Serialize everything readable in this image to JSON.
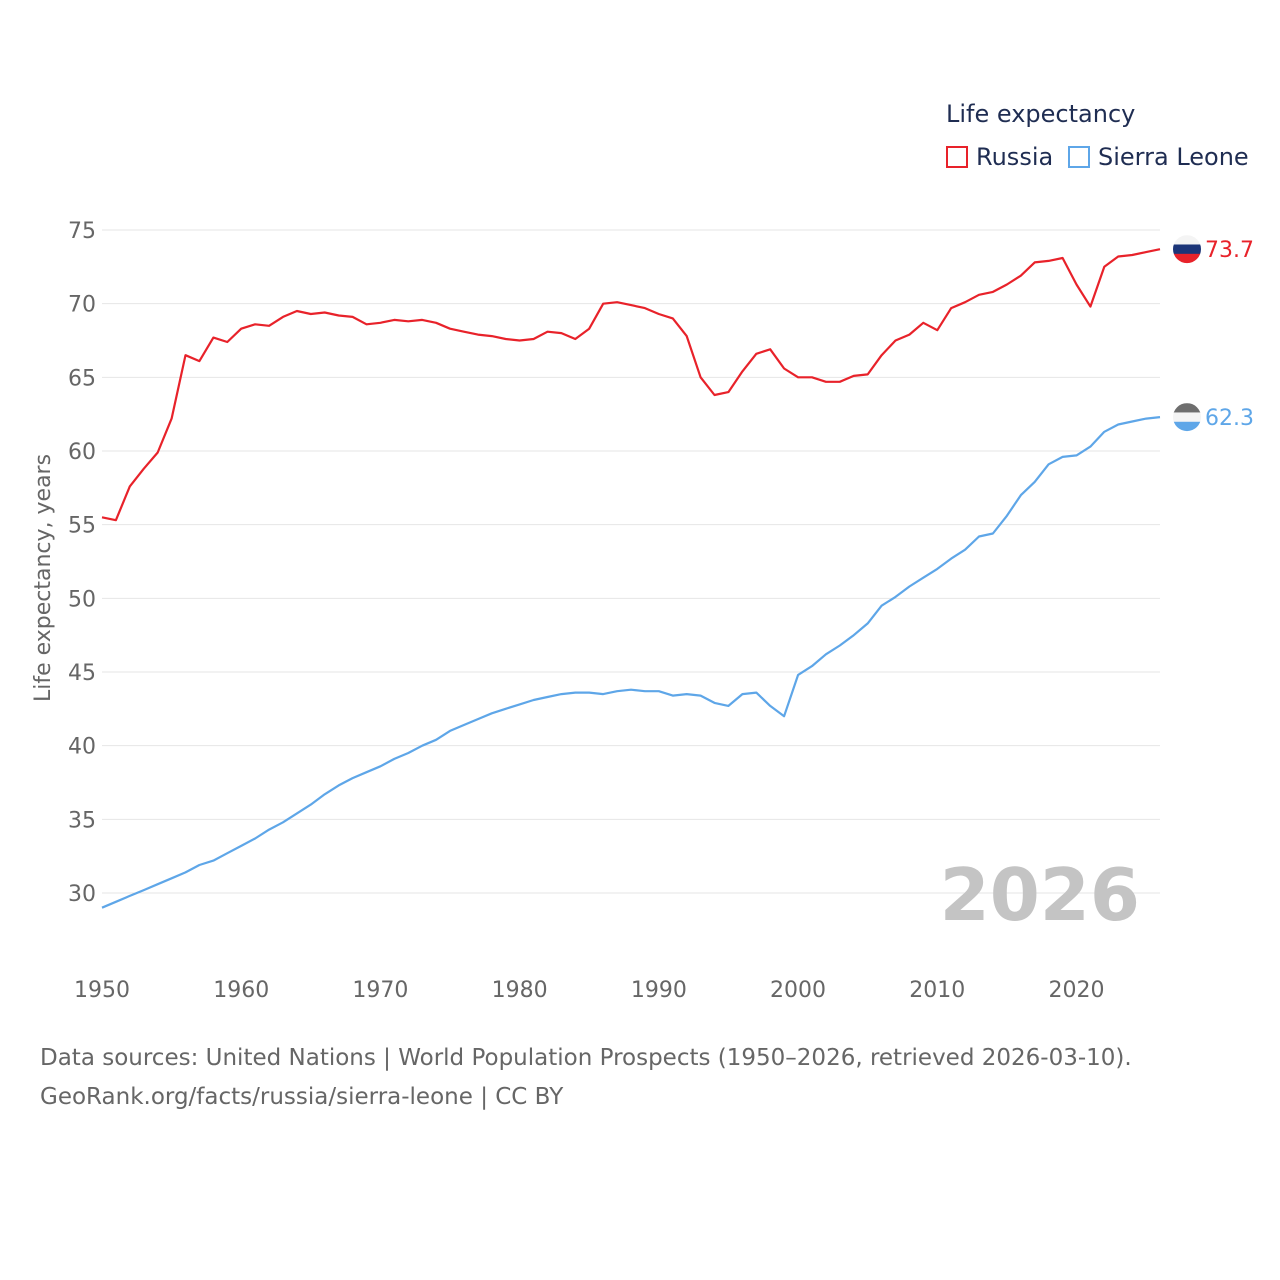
{
  "legend": {
    "title": "Life expectancy",
    "items": [
      {
        "label": "Russia",
        "color": "#e8222a"
      },
      {
        "label": "Sierra Leone",
        "color": "#5ea6e8"
      }
    ]
  },
  "footer": {
    "line1": "Data sources: United Nations | World Population Prospects (1950–2026, retrieved 2026-03-10).",
    "line2": "GeoRank.org/facts/russia/sierra-leone | CC BY"
  },
  "chart_data": {
    "type": "line",
    "title": "Life expectancy",
    "xlabel": "",
    "ylabel": "Life expectancy, years",
    "xlim": [
      1950,
      2026
    ],
    "ylim": [
      28,
      75
    ],
    "xticks": [
      1950,
      1960,
      1970,
      1980,
      1990,
      2000,
      2010,
      2020
    ],
    "yticks": [
      30,
      35,
      40,
      45,
      50,
      55,
      60,
      65,
      70,
      75
    ],
    "year_label": "2026",
    "grid": true,
    "x": [
      1950,
      1951,
      1952,
      1953,
      1954,
      1955,
      1956,
      1957,
      1958,
      1959,
      1960,
      1961,
      1962,
      1963,
      1964,
      1965,
      1966,
      1967,
      1968,
      1969,
      1970,
      1971,
      1972,
      1973,
      1974,
      1975,
      1976,
      1977,
      1978,
      1979,
      1980,
      1981,
      1982,
      1983,
      1984,
      1985,
      1986,
      1987,
      1988,
      1989,
      1990,
      1991,
      1992,
      1993,
      1994,
      1995,
      1996,
      1997,
      1998,
      1999,
      2000,
      2001,
      2002,
      2003,
      2004,
      2005,
      2006,
      2007,
      2008,
      2009,
      2010,
      2011,
      2012,
      2013,
      2014,
      2015,
      2016,
      2017,
      2018,
      2019,
      2020,
      2021,
      2022,
      2023,
      2024,
      2025,
      2026
    ],
    "series": [
      {
        "name": "Russia",
        "color": "#e8222a",
        "end_label": "73.7",
        "values": [
          55.5,
          55.3,
          57.6,
          58.8,
          59.9,
          62.2,
          66.5,
          66.1,
          67.7,
          67.4,
          68.3,
          68.6,
          68.5,
          69.1,
          69.5,
          69.3,
          69.4,
          69.2,
          69.1,
          68.6,
          68.7,
          68.9,
          68.8,
          68.9,
          68.7,
          68.3,
          68.1,
          67.9,
          67.8,
          67.6,
          67.5,
          67.6,
          68.1,
          68.0,
          67.6,
          68.3,
          70.0,
          70.1,
          69.9,
          69.7,
          69.3,
          69.0,
          67.8,
          65.0,
          63.8,
          64.0,
          65.4,
          66.6,
          66.9,
          65.6,
          65.0,
          65.0,
          64.7,
          64.7,
          65.1,
          65.2,
          66.5,
          67.5,
          67.9,
          68.7,
          68.2,
          69.7,
          70.1,
          70.6,
          70.8,
          71.3,
          71.9,
          72.8,
          72.9,
          73.1,
          71.3,
          69.8,
          72.5,
          73.2,
          73.3,
          73.5,
          73.7
        ]
      },
      {
        "name": "Sierra Leone",
        "color": "#5ea6e8",
        "end_label": "62.3",
        "values": [
          29.0,
          29.4,
          29.8,
          30.2,
          30.6,
          31.0,
          31.4,
          31.9,
          32.2,
          32.7,
          33.2,
          33.7,
          34.3,
          34.8,
          35.4,
          36.0,
          36.7,
          37.3,
          37.8,
          38.2,
          38.6,
          39.1,
          39.5,
          40.0,
          40.4,
          41.0,
          41.4,
          41.8,
          42.2,
          42.5,
          42.8,
          43.1,
          43.3,
          43.5,
          43.6,
          43.6,
          43.5,
          43.7,
          43.8,
          43.7,
          43.7,
          43.4,
          43.5,
          43.4,
          42.9,
          42.7,
          43.5,
          43.6,
          42.7,
          42.0,
          44.8,
          45.4,
          46.2,
          46.8,
          47.5,
          48.3,
          49.5,
          50.1,
          50.8,
          51.4,
          52.0,
          52.7,
          53.3,
          54.2,
          54.4,
          55.6,
          57.0,
          57.9,
          59.1,
          59.6,
          59.7,
          60.3,
          61.3,
          61.8,
          62.0,
          62.2,
          62.3
        ]
      }
    ]
  }
}
